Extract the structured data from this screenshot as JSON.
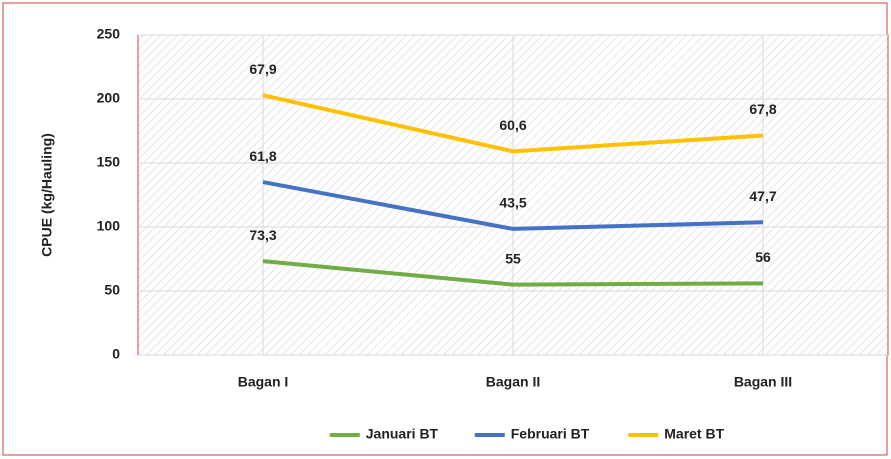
{
  "chart_data": {
    "type": "line",
    "stacked": true,
    "ylabel": "CPUE (kg/Hauling)",
    "categories": [
      "Bagan I",
      "Bagan II",
      "Bagan III"
    ],
    "series": [
      {
        "name": "Januari BT",
        "color": "#70ad47",
        "values": [
          73.3,
          55,
          56
        ],
        "value_labels": [
          "73,3",
          "55",
          "56"
        ]
      },
      {
        "name": "Februari BT",
        "color": "#4472c4",
        "values": [
          61.8,
          43.5,
          47.7
        ],
        "value_labels": [
          "61,8",
          "43,5",
          "47,7"
        ]
      },
      {
        "name": "Maret BT",
        "color": "#ffc000",
        "values": [
          67.9,
          60.6,
          67.8
        ],
        "value_labels": [
          "67,9",
          "60,6",
          "67,8"
        ]
      }
    ],
    "ylim": [
      0,
      250
    ],
    "yticks": [
      0,
      50,
      100,
      150,
      200,
      250
    ],
    "grid": true,
    "legend": "bottom"
  }
}
